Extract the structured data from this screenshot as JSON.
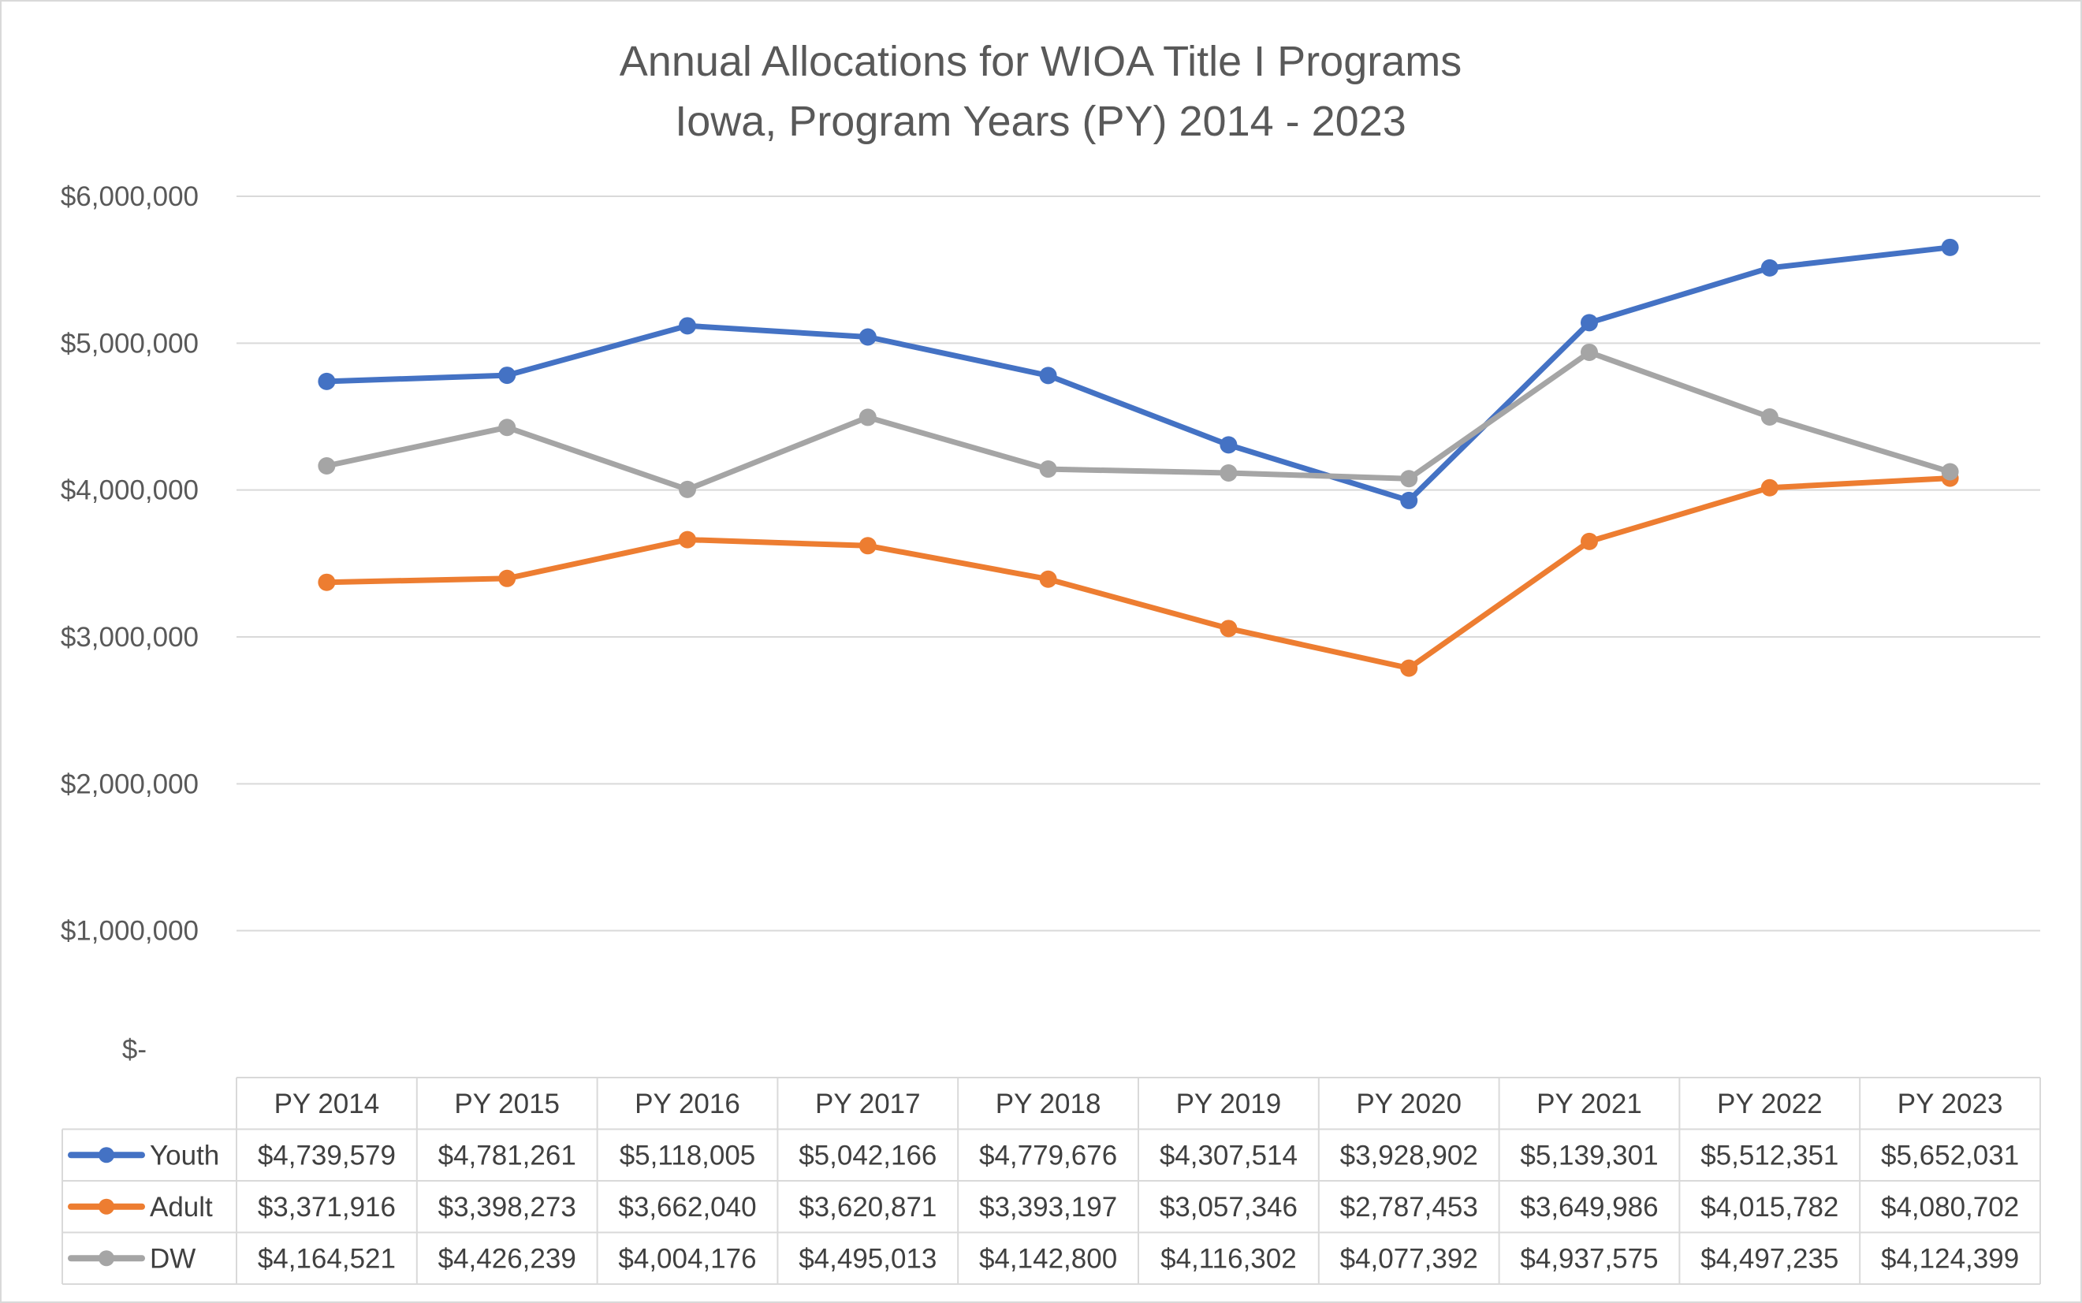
{
  "chart_data": {
    "type": "line",
    "title": "Annual Allocations for WIOA Title I Programs",
    "subtitle": "Iowa, Program Years (PY) 2014 - 2023",
    "categories": [
      "PY 2014",
      "PY 2015",
      "PY 2016",
      "PY 2017",
      "PY 2018",
      "PY 2019",
      "PY 2020",
      "PY 2021",
      "PY 2022",
      "PY 2023"
    ],
    "ylim": [
      0,
      6000000
    ],
    "yticks": [
      0,
      1000000,
      2000000,
      3000000,
      4000000,
      5000000,
      6000000
    ],
    "ytick_labels": [
      "$-",
      "$1,000,000",
      "$2,000,000",
      "$3,000,000",
      "$4,000,000",
      "$5,000,000",
      "$6,000,000"
    ],
    "grid": true,
    "legend": "data-table",
    "series": [
      {
        "name": "Youth",
        "color": "#4472c4",
        "values": [
          4739579,
          4781261,
          5118005,
          5042166,
          4779676,
          4307514,
          3928902,
          5139301,
          5512351,
          5652031
        ],
        "labels": [
          "$4,739,579",
          "$4,781,261",
          "$5,118,005",
          "$5,042,166",
          "$4,779,676",
          "$4,307,514",
          "$3,928,902",
          "$5,139,301",
          "$5,512,351",
          "$5,652,031"
        ]
      },
      {
        "name": "Adult",
        "color": "#ed7d31",
        "values": [
          3371916,
          3398273,
          3662040,
          3620871,
          3393197,
          3057346,
          2787453,
          3649986,
          4015782,
          4080702
        ],
        "labels": [
          "$3,371,916",
          "$3,398,273",
          "$3,662,040",
          "$3,620,871",
          "$3,393,197",
          "$3,057,346",
          "$2,787,453",
          "$3,649,986",
          "$4,015,782",
          "$4,080,702"
        ]
      },
      {
        "name": "DW",
        "color": "#a5a5a5",
        "values": [
          4164521,
          4426239,
          4004176,
          4495013,
          4142800,
          4116302,
          4077392,
          4937575,
          4497235,
          4124399
        ],
        "labels": [
          "$4,164,521",
          "$4,426,239",
          "$4,004,176",
          "$4,495,013",
          "$4,142,800",
          "$4,116,302",
          "$4,077,392",
          "$4,937,575",
          "$4,497,235",
          "$4,124,399"
        ]
      }
    ]
  }
}
